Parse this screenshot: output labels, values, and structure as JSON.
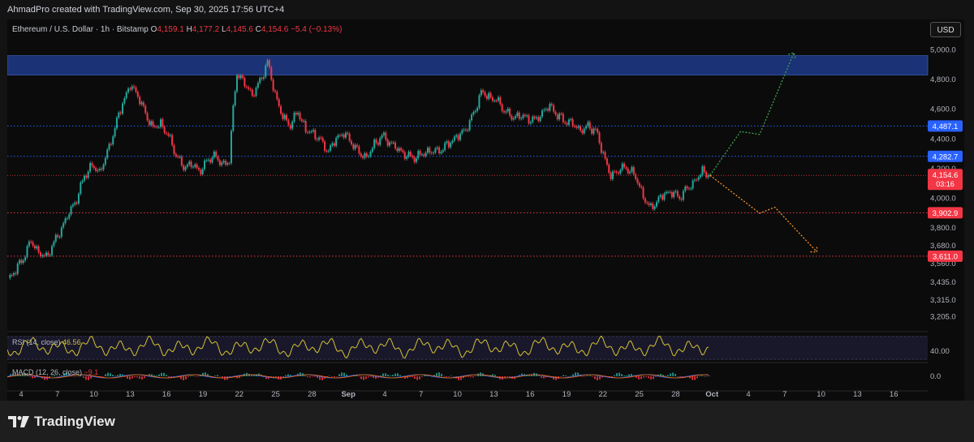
{
  "caption": "AhmadPro created with TradingView.com, Sep 30, 2025 17:56 UTC+4",
  "brand": "TradingView",
  "currency_button": "USD",
  "legend": {
    "symbol": "Ethereum / U.S. Dollar · 1h · Bitstamp",
    "open_key": "O",
    "open": "4,159.1",
    "high_key": "H",
    "high": "4,177.2",
    "low_key": "L",
    "low": "4,145.6",
    "close_key": "C",
    "close": "4,154.6",
    "change": "−5.4 (−0.13%)"
  },
  "rsi_label": "RSI (14, close)",
  "rsi_value": "46.56",
  "macd_label": "MACD (12, 26, close)",
  "macd_value": "−9.1",
  "colors": {
    "up": "#26a69a",
    "down": "#f23645",
    "price_label": "#f23645",
    "level_label": "#2962ff",
    "zone": "#1e3a8a",
    "rsi": "#d4c233",
    "proj_up": "#3fa34d",
    "proj_down": "#f2932c"
  },
  "chart_data": {
    "type": "candlestick",
    "x_ticks": [
      "4",
      "7",
      "10",
      "13",
      "16",
      "19",
      "22",
      "25",
      "28",
      "Sep",
      "4",
      "7",
      "10",
      "13",
      "16",
      "19",
      "22",
      "25",
      "28",
      "Oct",
      "4",
      "7",
      "10",
      "13",
      "16"
    ],
    "y_ticks": [
      "5,000.0",
      "4,800.0",
      "4,600.0",
      "4,400.0",
      "4,200.0",
      "4,000.0",
      "3,800.0",
      "3,680.0",
      "3,560.0",
      "3,435.0",
      "3,315.0",
      "3,205.0"
    ],
    "price_path": [
      [
        0,
        3450
      ],
      [
        2,
        3520
      ],
      [
        4,
        3600
      ],
      [
        6,
        3710
      ],
      [
        8,
        3640
      ],
      [
        10,
        3600
      ],
      [
        12,
        3700
      ],
      [
        14,
        3800
      ],
      [
        16,
        3900
      ],
      [
        18,
        4000
      ],
      [
        20,
        4150
      ],
      [
        22,
        4220
      ],
      [
        24,
        4180
      ],
      [
        26,
        4300
      ],
      [
        28,
        4480
      ],
      [
        30,
        4640
      ],
      [
        32,
        4760
      ],
      [
        34,
        4700
      ],
      [
        36,
        4560
      ],
      [
        38,
        4480
      ],
      [
        40,
        4500
      ],
      [
        42,
        4420
      ],
      [
        44,
        4300
      ],
      [
        46,
        4200
      ],
      [
        48,
        4240
      ],
      [
        50,
        4180
      ],
      [
        52,
        4240
      ],
      [
        54,
        4300
      ],
      [
        56,
        4220
      ],
      [
        58,
        4260
      ],
      [
        59,
        4600
      ],
      [
        60,
        4840
      ],
      [
        62,
        4770
      ],
      [
        64,
        4700
      ],
      [
        66,
        4780
      ],
      [
        68,
        4920
      ],
      [
        70,
        4700
      ],
      [
        72,
        4540
      ],
      [
        74,
        4500
      ],
      [
        76,
        4580
      ],
      [
        78,
        4460
      ],
      [
        80,
        4440
      ],
      [
        82,
        4380
      ],
      [
        84,
        4320
      ],
      [
        86,
        4400
      ],
      [
        88,
        4440
      ],
      [
        90,
        4380
      ],
      [
        92,
        4300
      ],
      [
        94,
        4280
      ],
      [
        96,
        4360
      ],
      [
        98,
        4420
      ],
      [
        100,
        4380
      ],
      [
        102,
        4330
      ],
      [
        104,
        4300
      ],
      [
        106,
        4270
      ],
      [
        108,
        4290
      ],
      [
        110,
        4320
      ],
      [
        112,
        4310
      ],
      [
        114,
        4340
      ],
      [
        116,
        4380
      ],
      [
        118,
        4420
      ],
      [
        120,
        4470
      ],
      [
        122,
        4560
      ],
      [
        124,
        4720
      ],
      [
        126,
        4680
      ],
      [
        128,
        4660
      ],
      [
        130,
        4600
      ],
      [
        132,
        4540
      ],
      [
        134,
        4560
      ],
      [
        136,
        4540
      ],
      [
        138,
        4520
      ],
      [
        140,
        4580
      ],
      [
        142,
        4620
      ],
      [
        144,
        4560
      ],
      [
        146,
        4520
      ],
      [
        148,
        4500
      ],
      [
        150,
        4460
      ],
      [
        152,
        4480
      ],
      [
        154,
        4460
      ],
      [
        156,
        4300
      ],
      [
        158,
        4140
      ],
      [
        160,
        4200
      ],
      [
        162,
        4200
      ],
      [
        164,
        4170
      ],
      [
        166,
        4050
      ],
      [
        168,
        3930
      ],
      [
        170,
        3980
      ],
      [
        172,
        4030
      ],
      [
        174,
        4040
      ],
      [
        176,
        4010
      ],
      [
        178,
        4060
      ],
      [
        180,
        4120
      ],
      [
        182,
        4180
      ],
      [
        184,
        4154.6
      ]
    ],
    "price_ylim": [
      3130,
      5040
    ],
    "last_price": "4,154.6",
    "countdown": "03:16",
    "levels": [
      {
        "value": 4487.1,
        "label": "4,487.1",
        "style": "blue-dotted"
      },
      {
        "value": 4282.7,
        "label": "4,282.7",
        "style": "blue-dotted"
      },
      {
        "value": 3902.9,
        "label": "3,902.9",
        "style": "red-dotted"
      },
      {
        "value": 3611.0,
        "label": "3,611.0",
        "style": "red-dotted"
      }
    ],
    "zone": [
      4830,
      4960
    ],
    "projection_up": [
      [
        184,
        4154.6
      ],
      [
        192,
        4450
      ],
      [
        197,
        4430
      ],
      [
        206,
        4980
      ]
    ],
    "projection_down": [
      [
        184,
        4154.6
      ],
      [
        197,
        3900
      ],
      [
        201,
        3940
      ],
      [
        212,
        3640
      ]
    ],
    "rsi": {
      "level": "40.00",
      "last": 46.56
    },
    "macd": {
      "level": "0.0",
      "last": -9.1
    }
  }
}
